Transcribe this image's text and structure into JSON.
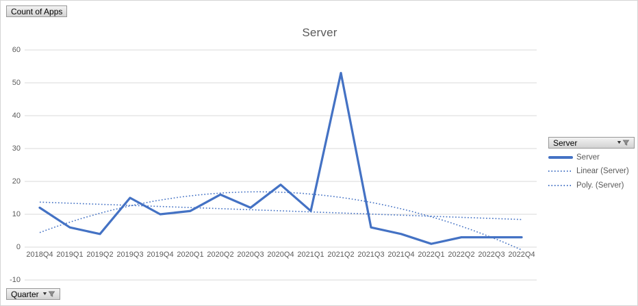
{
  "field_buttons": {
    "values_button": "Count of Apps",
    "axis_button": "Quarter",
    "legend_button": "Server"
  },
  "chart_data": {
    "type": "line",
    "title": "Server",
    "categories": [
      "2018Q4",
      "2019Q1",
      "2019Q2",
      "2019Q3",
      "2019Q4",
      "2020Q1",
      "2020Q2",
      "2020Q3",
      "2020Q4",
      "2021Q1",
      "2021Q2",
      "2021Q3",
      "2021Q4",
      "2022Q1",
      "2022Q2",
      "2022Q3",
      "2022Q4"
    ],
    "series": [
      {
        "name": "Server",
        "values": [
          12,
          6,
          4,
          15,
          10,
          11,
          16,
          12,
          19,
          11,
          53,
          6,
          4,
          1,
          3,
          3,
          3
        ],
        "color": "#4472C4",
        "style": "solid"
      }
    ],
    "trendlines": [
      {
        "name": "Linear (Server)",
        "type": "linear",
        "intercept": 13.7,
        "slope": -0.331,
        "color": "#4472C4",
        "style": "dotted"
      },
      {
        "name": "Poly. (Server)",
        "type": "polynomial",
        "coefficients": [
          4.44,
          3.399,
          -0.2331
        ],
        "color": "#4472C4",
        "style": "dotted"
      }
    ],
    "xlabel": "Quarter",
    "ylabel": "Count of Apps",
    "ylim": [
      -10,
      60
    ],
    "ytick_step": 10,
    "grid": true,
    "legend_position": "right",
    "legend_entries": [
      "Server",
      "Linear (Server)",
      "Poly. (Server)"
    ]
  },
  "colors": {
    "series": "#4472C4",
    "gridline": "#D9D9D9",
    "axis_text": "#595959",
    "title_text": "#595959",
    "frame_border": "#D4D4D4",
    "button_border": "#979797"
  }
}
